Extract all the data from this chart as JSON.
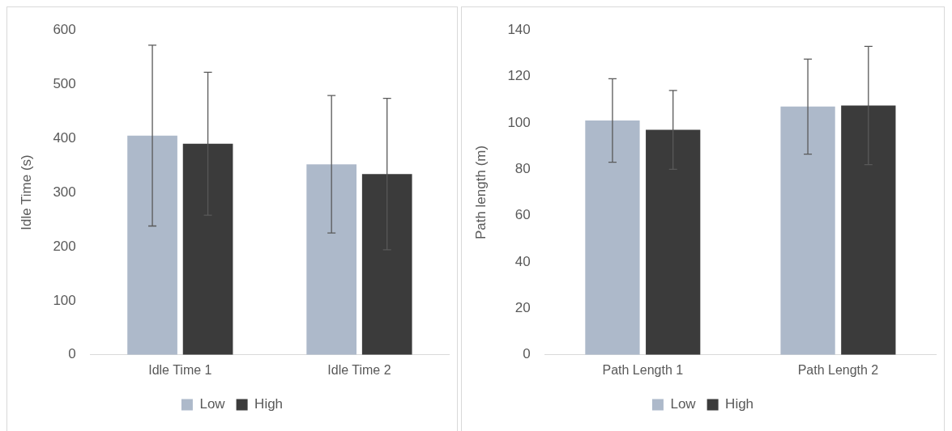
{
  "chart_data": [
    {
      "type": "bar",
      "ylabel": "Idle Time (s)",
      "categories": [
        "Idle Time 1",
        "Idle Time 2"
      ],
      "ylim": [
        0,
        600
      ],
      "yticks": [
        0,
        100,
        200,
        300,
        400,
        500,
        600
      ],
      "grid": false,
      "legend": "bottom",
      "series": [
        {
          "name": "Low",
          "color": "#adb9ca",
          "values": [
            405,
            352
          ],
          "errors": [
            167,
            127
          ]
        },
        {
          "name": "High",
          "color": "#3b3b3b",
          "values": [
            390,
            334
          ],
          "errors": [
            132,
            140
          ]
        }
      ]
    },
    {
      "type": "bar",
      "ylabel": "Path length (m)",
      "categories": [
        "Path Length 1",
        "Path Length 2"
      ],
      "ylim": [
        0,
        140
      ],
      "yticks": [
        0,
        20,
        40,
        60,
        80,
        100,
        120,
        140
      ],
      "grid": false,
      "legend": "bottom",
      "series": [
        {
          "name": "Low",
          "color": "#adb9ca",
          "values": [
            101,
            107
          ],
          "errors": [
            18,
            20.5
          ]
        },
        {
          "name": "High",
          "color": "#3b3b3b",
          "values": [
            97,
            107.5
          ],
          "errors": [
            17,
            25.5
          ]
        }
      ]
    }
  ]
}
